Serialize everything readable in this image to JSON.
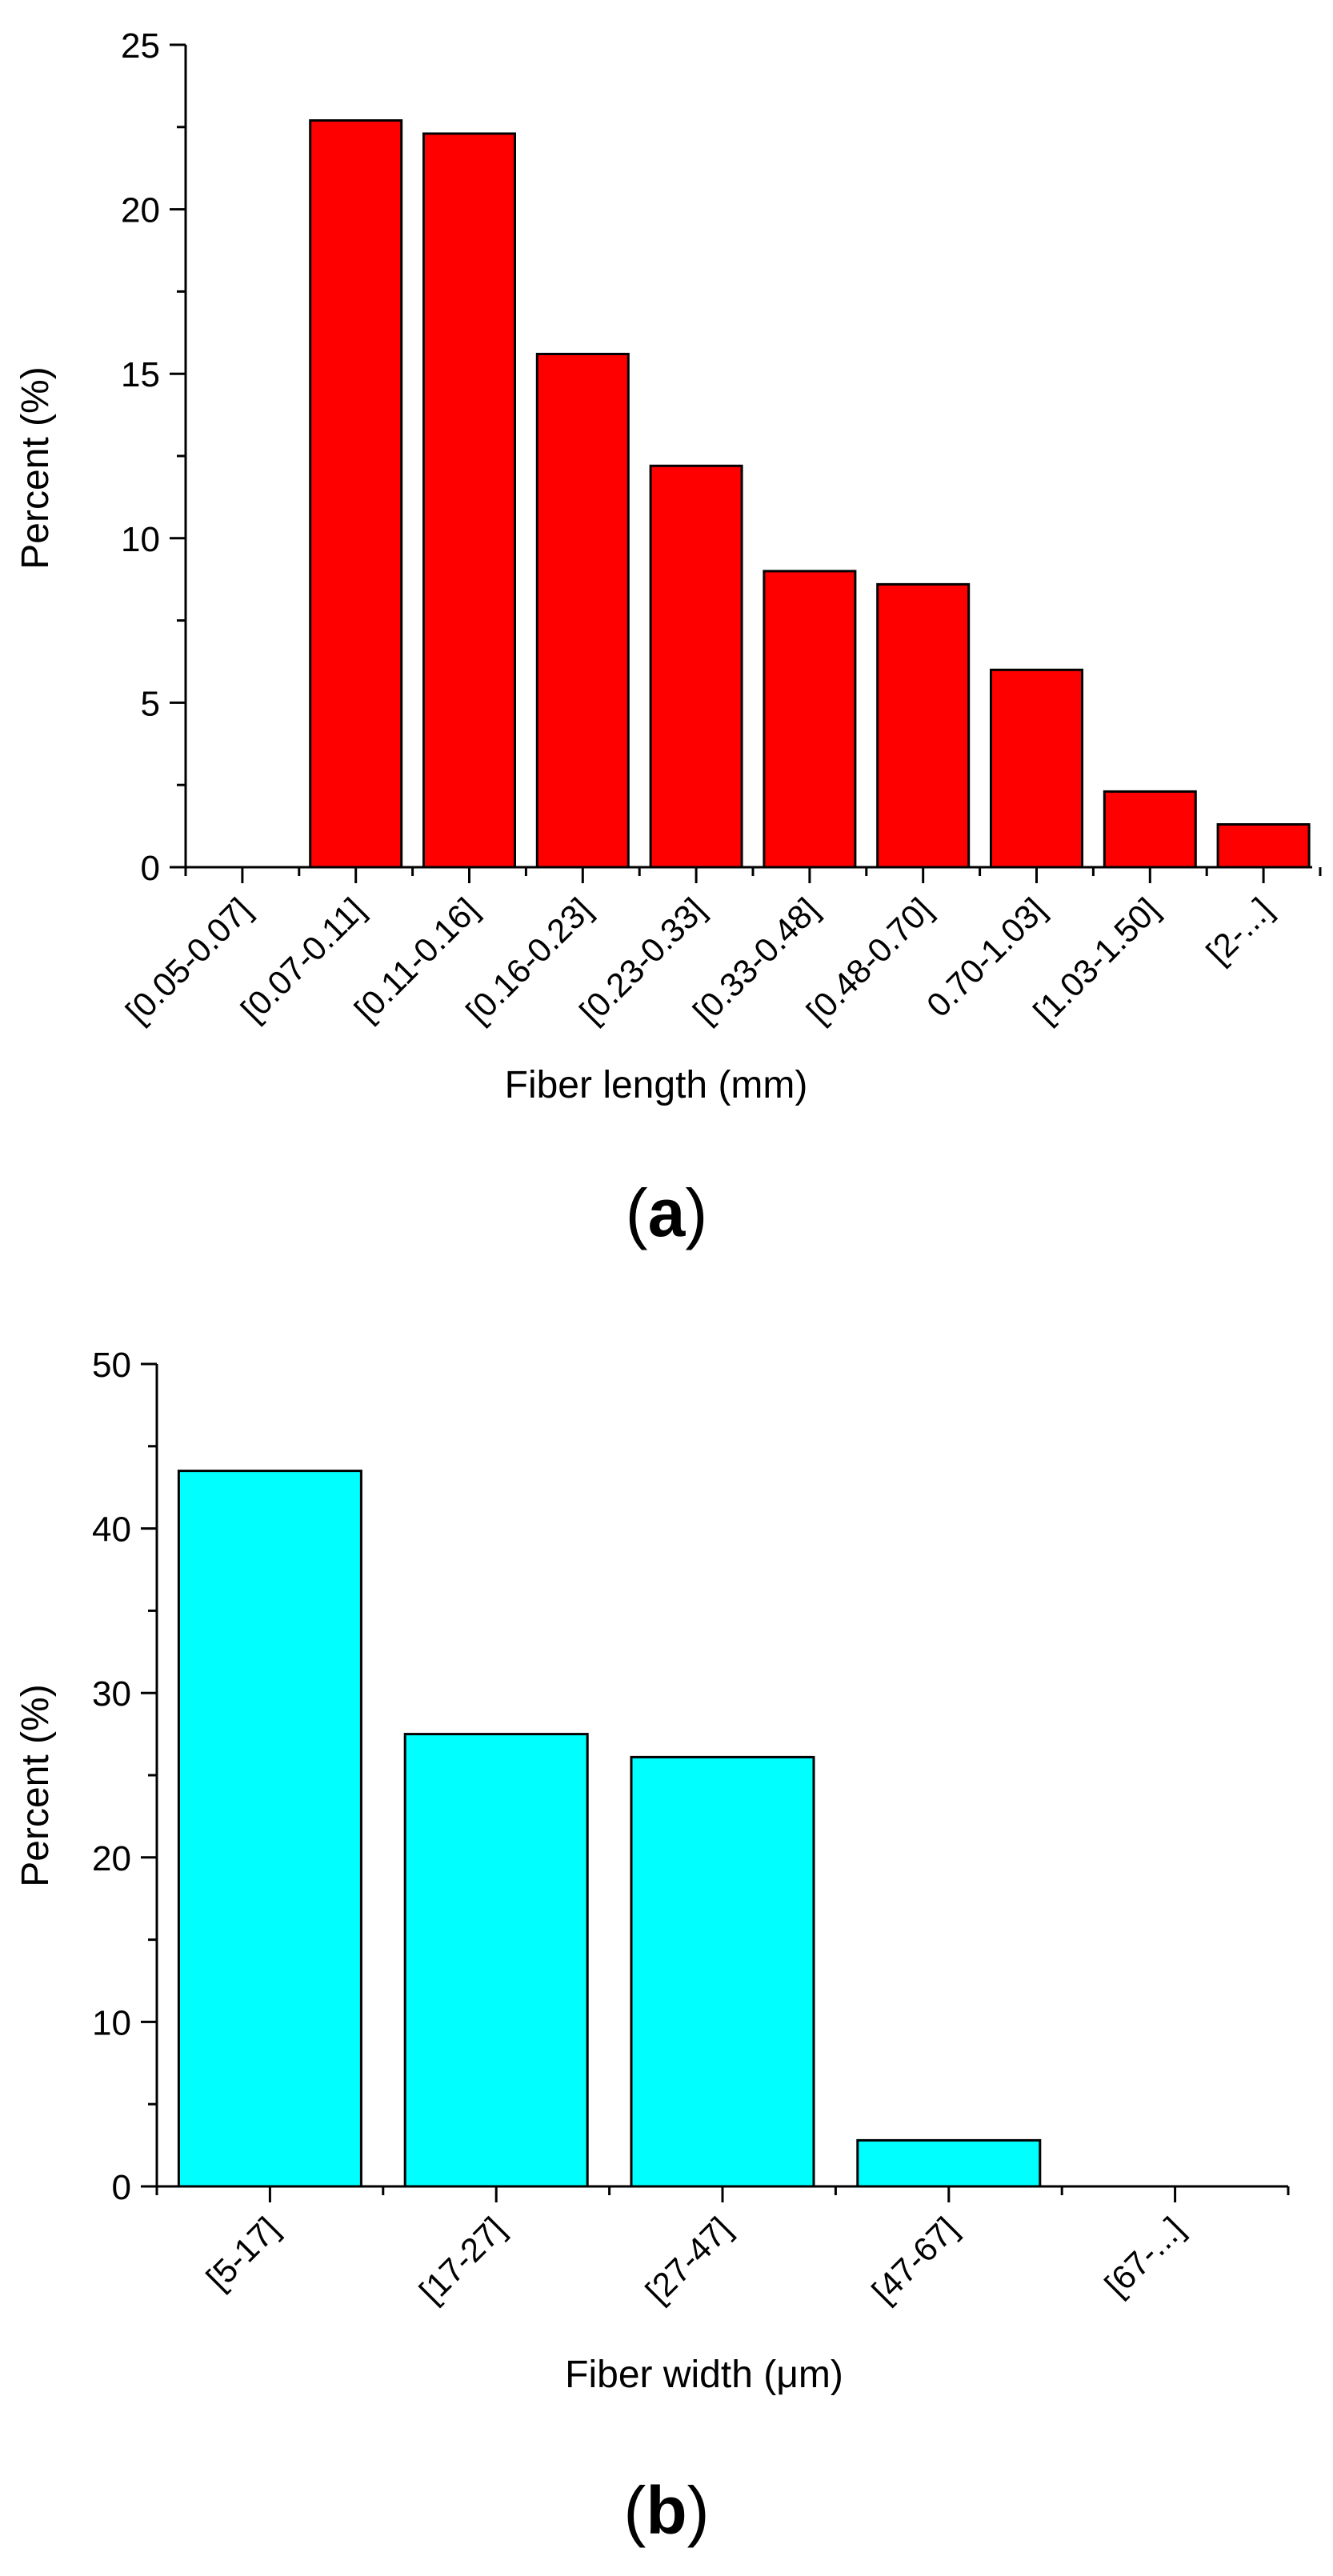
{
  "chart_data": [
    {
      "type": "bar",
      "panel_label": "a",
      "xlabel": "Fiber length (mm)",
      "ylabel": "Percent (%)",
      "ylim": [
        0,
        25
      ],
      "yticks": [
        0,
        5,
        10,
        15,
        20,
        25
      ],
      "categories": [
        "[0.05-0.07]",
        "[0.07-0.11]",
        "[0.11-0.16]",
        "[0.16-0.23]",
        "[0.23-0.33]",
        "[0.33-0.48]",
        "[0.48-0.70]",
        "0.70-1.03]",
        "[1.03-1.50]",
        "[2-...]"
      ],
      "values": [
        0,
        22.7,
        22.3,
        15.6,
        12.2,
        9.0,
        8.6,
        6.0,
        2.3,
        1.3
      ],
      "bar_color": "#ff0000",
      "grid": false,
      "legend": "none"
    },
    {
      "type": "bar",
      "panel_label": "b",
      "xlabel": "Fiber width (μm)",
      "ylabel": "Percent (%)",
      "ylim": [
        0,
        50
      ],
      "yticks": [
        0,
        10,
        20,
        30,
        40,
        50
      ],
      "categories": [
        "[5-17]",
        "[17-27]",
        "[27-47]",
        "[47-67]",
        "[67-...]"
      ],
      "values": [
        43.5,
        27.5,
        26.1,
        2.8,
        0
      ],
      "bar_color": "#00ffff",
      "grid": false,
      "legend": "none"
    }
  ]
}
